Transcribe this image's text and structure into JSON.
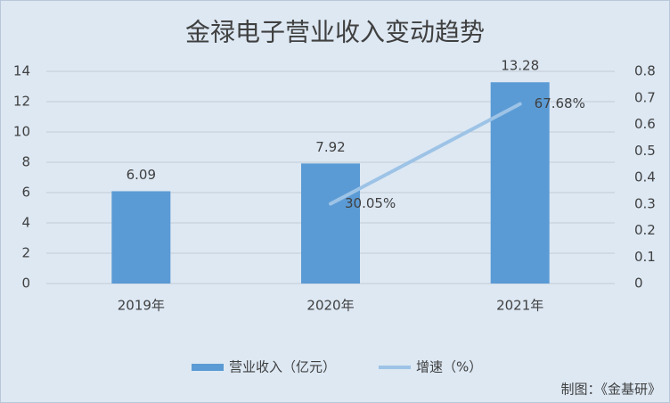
{
  "chart_data": {
    "type": "bar",
    "title": "金禄电子营业收入变动趋势",
    "categories": [
      "2019年",
      "2020年",
      "2021年"
    ],
    "series": [
      {
        "name": "营业收入（亿元）",
        "type": "bar",
        "color": "#5b9bd5",
        "values": [
          6.09,
          7.92,
          13.28
        ]
      },
      {
        "name": "增速（%）",
        "type": "line",
        "axis": "y2",
        "color": "#9dc3e6",
        "values": [
          null,
          0.3005,
          0.6768
        ],
        "value_labels": [
          null,
          "30.05%",
          "67.68%"
        ]
      }
    ],
    "ylim": [
      0,
      14
    ],
    "yticks": [
      0,
      2,
      4,
      6,
      8,
      10,
      12,
      14
    ],
    "y2lim": [
      0,
      0.8
    ],
    "y2ticks": [
      0,
      0.1,
      0.2,
      0.3,
      0.4,
      0.5,
      0.6,
      0.7,
      0.8
    ],
    "grid": true,
    "legend": "bottom",
    "source": "制图：《金基研》"
  }
}
